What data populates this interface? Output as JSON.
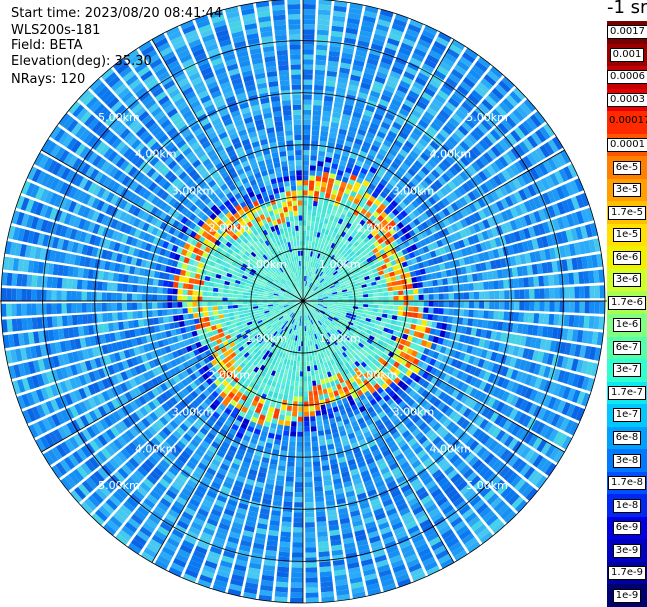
{
  "header": {
    "start_time": "Start time: 2023/08/20 08:41:44",
    "instrument": "WLS200s-181",
    "field": "Field: BETA",
    "elevation": "Elevation(deg): 35.30",
    "nrays": "NRays: 120"
  },
  "plot": {
    "range_rings": [
      {
        "label": "1.00km",
        "km": 1
      },
      {
        "label": "2.00km",
        "km": 2
      },
      {
        "label": "3.00km",
        "km": 3
      },
      {
        "label": "4.00km",
        "km": 4
      },
      {
        "label": "5.00km",
        "km": 5
      }
    ],
    "max_range_km": 5.8,
    "n_rays": 120,
    "radial_line_count": 12
  },
  "colorbar": {
    "unit": "-1 sr",
    "labels": [
      "0.0017",
      "0.001",
      "0.0006",
      "0.0003",
      "0.00017",
      "0.0001",
      "6e-5",
      "3e-5",
      "1.7e-5",
      "1e-5",
      "6e-6",
      "3e-6",
      "1.7e-6",
      "1e-6",
      "6e-7",
      "3e-7",
      "1.7e-7",
      "1e-7",
      "6e-8",
      "3e-8",
      "1.7e-8",
      "1e-8",
      "6e-9",
      "3e-9",
      "1.7e-9",
      "1e-9"
    ],
    "colors": [
      "#7a0000",
      "#9b0000",
      "#c40000",
      "#e80000",
      "#ff2a00",
      "#ff5500",
      "#ff7f00",
      "#ffa000",
      "#ffc000",
      "#ffe000",
      "#f0f000",
      "#d0ff2a",
      "#a8ff50",
      "#80ff80",
      "#55ffaa",
      "#30ffd0",
      "#10e8f0",
      "#00c8ff",
      "#00a0ff",
      "#0078ff",
      "#0050ff",
      "#0028f0",
      "#0000e0",
      "#0000c0",
      "#00009a",
      "#000070"
    ]
  }
}
